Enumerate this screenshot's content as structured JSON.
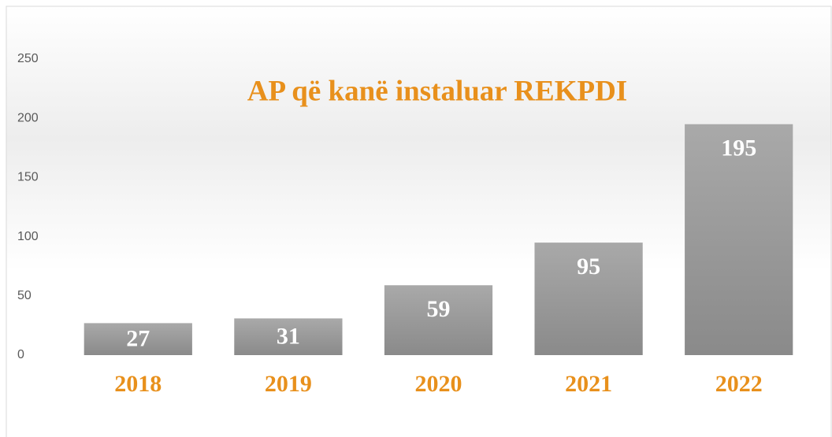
{
  "chart_data": {
    "type": "bar",
    "title": "AP që kanë instaluar REKPDI",
    "categories": [
      "2018",
      "2019",
      "2020",
      "2021",
      "2022"
    ],
    "values": [
      27,
      31,
      59,
      95,
      195
    ],
    "color": "#9a9a9a",
    "ylim": [
      0,
      250
    ],
    "yticks": [
      0,
      50,
      100,
      150,
      200,
      250
    ],
    "grid": false
  }
}
